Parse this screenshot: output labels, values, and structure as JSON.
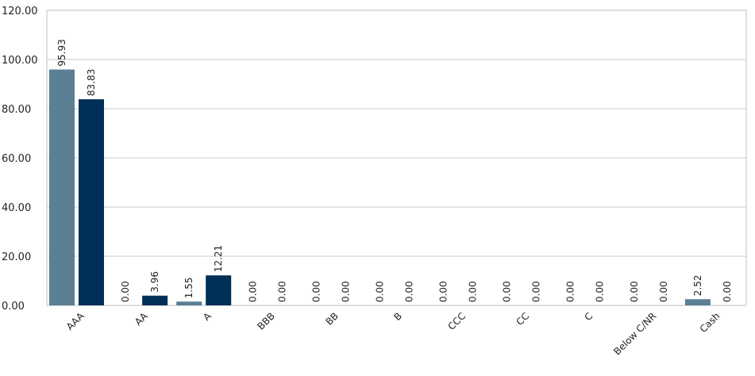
{
  "chart_data": {
    "type": "bar",
    "title": "",
    "xlabel": "",
    "ylabel": "",
    "ylim": [
      0,
      120
    ],
    "yticks": [
      "0.00",
      "20.00",
      "40.00",
      "60.00",
      "80.00",
      "100.00",
      "120.00"
    ],
    "grid": true,
    "legend": "none",
    "categories": [
      "AAA",
      "AA",
      "A",
      "BBB",
      "BB",
      "B",
      "CCC",
      "CC",
      "C",
      "Below C/NR",
      "Cash"
    ],
    "series": [
      {
        "values": [
          95.93,
          0.0,
          1.55,
          0.0,
          0.0,
          0.0,
          0.0,
          0.0,
          0.0,
          0.0,
          2.52
        ],
        "labels": [
          "95.93",
          "0.00",
          "1.55",
          "0.00",
          "0.00",
          "0.00",
          "0.00",
          "0.00",
          "0.00",
          "0.00",
          "2.52"
        ],
        "color": "#5b7f95"
      },
      {
        "values": [
          83.83,
          3.96,
          12.21,
          0.0,
          0.0,
          0.0,
          0.0,
          0.0,
          0.0,
          0.0,
          0.0
        ],
        "labels": [
          "83.83",
          "3.96",
          "12.21",
          "0.00",
          "0.00",
          "0.00",
          "0.00",
          "0.00",
          "0.00",
          "0.00",
          "0.00"
        ],
        "color": "#003057"
      }
    ],
    "grid_color": "#c8c8c8",
    "axis_color": "#bfbfbf"
  }
}
